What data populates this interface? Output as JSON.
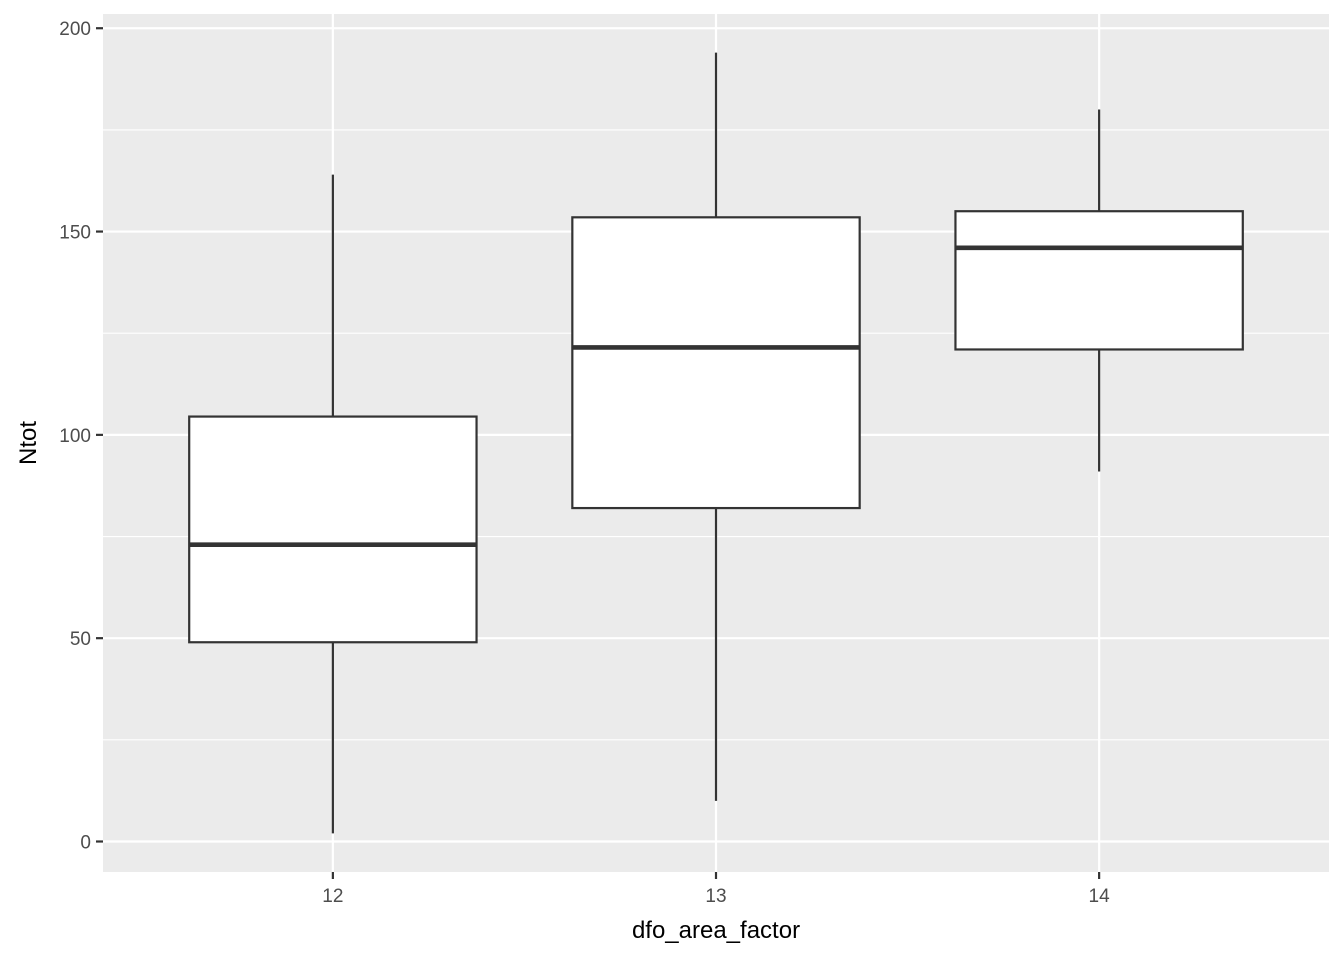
{
  "chart_data": {
    "type": "boxplot",
    "title": "",
    "xlabel": "dfo_area_factor",
    "ylabel": "Ntot",
    "categories": [
      "12",
      "13",
      "14"
    ],
    "ylim": [
      -7.5,
      203.5
    ],
    "y_ticks": [
      0,
      50,
      100,
      150,
      200
    ],
    "y_minor_ticks": [
      25,
      75,
      125,
      175
    ],
    "grid": true,
    "legend": "none",
    "boxes": [
      {
        "category": "12",
        "min": 2,
        "q1": 49,
        "median": 73,
        "q3": 104.5,
        "max": 164
      },
      {
        "category": "13",
        "min": 10,
        "q1": 82,
        "median": 121.5,
        "q3": 153.5,
        "max": 194
      },
      {
        "category": "14",
        "min": 91,
        "q1": 121,
        "median": 146,
        "q3": 155,
        "max": 180
      }
    ],
    "colors": {
      "panel_background": "#ebebeb",
      "grid": "#ffffff",
      "box_fill": "#ffffff",
      "box_stroke": "#333333"
    }
  }
}
